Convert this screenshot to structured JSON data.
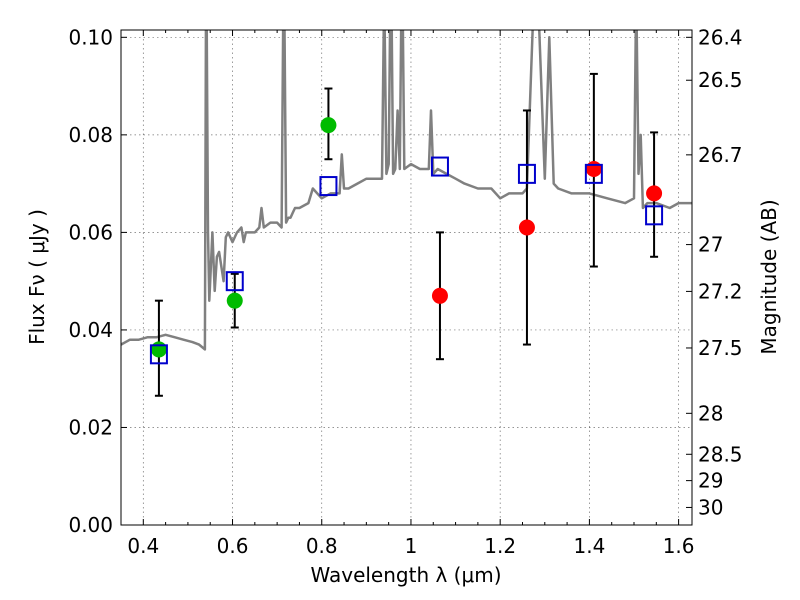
{
  "chart_data": {
    "type": "scatter",
    "title": "",
    "xlabel": "Wavelength  λ (μm)",
    "ylabel": "Flux  Fν  ( μJy )",
    "y2label": "Magnitude (AB)",
    "xlim": [
      0.35,
      1.63
    ],
    "ylim": [
      0.0,
      0.1015
    ],
    "grid": true,
    "x_ticks": [
      0.4,
      0.6,
      0.8,
      1.0,
      1.2,
      1.4,
      1.6
    ],
    "x_tick_labels": [
      "0.4",
      "0.6",
      "0.8",
      "1",
      "1.2",
      "1.4",
      "1.6"
    ],
    "y_ticks": [
      0.0,
      0.02,
      0.04,
      0.06,
      0.08,
      0.1
    ],
    "y_tick_labels": [
      "0.00",
      "0.02",
      "0.04",
      "0.06",
      "0.08",
      "0.10"
    ],
    "magnitude_ticks": [
      {
        "label": "26.4",
        "flux": 0.1
      },
      {
        "label": "26.5",
        "flux": 0.0912
      },
      {
        "label": "26.7",
        "flux": 0.0759
      },
      {
        "label": "27",
        "flux": 0.0575
      },
      {
        "label": "27.2",
        "flux": 0.0479
      },
      {
        "label": "27.5",
        "flux": 0.0363
      },
      {
        "label": "28",
        "flux": 0.0229
      },
      {
        "label": "28.5",
        "flux": 0.0145
      },
      {
        "label": "29",
        "flux": 0.0091
      },
      {
        "label": "30",
        "flux": 0.0036
      }
    ],
    "series": [
      {
        "name": "model spectrum",
        "kind": "line",
        "color": "#808080",
        "x": [
          0.35,
          0.37,
          0.39,
          0.41,
          0.43,
          0.45,
          0.47,
          0.49,
          0.51,
          0.525,
          0.538,
          0.541,
          0.545,
          0.548,
          0.55,
          0.555,
          0.56,
          0.565,
          0.57,
          0.58,
          0.585,
          0.59,
          0.6,
          0.61,
          0.62,
          0.625,
          0.63,
          0.65,
          0.66,
          0.665,
          0.67,
          0.685,
          0.7,
          0.71,
          0.715,
          0.72,
          0.725,
          0.73,
          0.735,
          0.74,
          0.75,
          0.77,
          0.78,
          0.8,
          0.82,
          0.84,
          0.845,
          0.85,
          0.86,
          0.88,
          0.9,
          0.92,
          0.935,
          0.94,
          0.945,
          0.95,
          0.955,
          0.96,
          0.965,
          0.97,
          0.975,
          0.98,
          0.985,
          1.0,
          1.02,
          1.04,
          1.045,
          1.05,
          1.06,
          1.08,
          1.1,
          1.12,
          1.15,
          1.18,
          1.2,
          1.22,
          1.25,
          1.26,
          1.28,
          1.3,
          1.31,
          1.32,
          1.33,
          1.36,
          1.4,
          1.44,
          1.48,
          1.5,
          1.505,
          1.51,
          1.515,
          1.52,
          1.53,
          1.55,
          1.58,
          1.6,
          1.63
        ],
        "y": [
          0.037,
          0.038,
          0.038,
          0.0385,
          0.0385,
          0.039,
          0.0385,
          0.038,
          0.0375,
          0.037,
          0.036,
          0.12,
          0.06,
          0.046,
          0.05,
          0.06,
          0.048,
          0.055,
          0.056,
          0.05,
          0.059,
          0.06,
          0.058,
          0.06,
          0.061,
          0.058,
          0.06,
          0.06,
          0.061,
          0.065,
          0.061,
          0.062,
          0.062,
          0.061,
          0.12,
          0.062,
          0.063,
          0.063,
          0.064,
          0.065,
          0.065,
          0.066,
          0.069,
          0.067,
          0.068,
          0.068,
          0.076,
          0.069,
          0.069,
          0.07,
          0.071,
          0.071,
          0.071,
          0.11,
          0.072,
          0.074,
          0.12,
          0.072,
          0.073,
          0.085,
          0.073,
          0.12,
          0.073,
          0.074,
          0.073,
          0.073,
          0.085,
          0.072,
          0.073,
          0.072,
          0.071,
          0.07,
          0.069,
          0.069,
          0.067,
          0.068,
          0.068,
          0.069,
          0.12,
          0.071,
          0.1,
          0.07,
          0.069,
          0.068,
          0.068,
          0.067,
          0.066,
          0.067,
          0.11,
          0.072,
          0.08,
          0.065,
          0.066,
          0.066,
          0.065,
          0.066,
          0.066
        ]
      },
      {
        "name": "green detections",
        "kind": "points",
        "color": "#00bb00",
        "points": [
          {
            "x": 0.435,
            "y": 0.036,
            "yerr_low": 0.0265,
            "yerr_high": 0.046
          },
          {
            "x": 0.605,
            "y": 0.046,
            "yerr_low": 0.0405,
            "yerr_high": 0.0515
          },
          {
            "x": 0.815,
            "y": 0.082,
            "yerr_low": 0.075,
            "yerr_high": 0.0895
          }
        ]
      },
      {
        "name": "red detections",
        "kind": "points",
        "color": "#ff0000",
        "points": [
          {
            "x": 1.065,
            "y": 0.047,
            "yerr_low": 0.034,
            "yerr_high": 0.06
          },
          {
            "x": 1.26,
            "y": 0.061,
            "yerr_low": 0.037,
            "yerr_high": 0.085
          },
          {
            "x": 1.41,
            "y": 0.073,
            "yerr_low": 0.053,
            "yerr_high": 0.0925
          },
          {
            "x": 1.545,
            "y": 0.068,
            "yerr_low": 0.055,
            "yerr_high": 0.0805
          }
        ]
      },
      {
        "name": "model band flux",
        "kind": "open-squares",
        "color": "#0000cc",
        "points": [
          {
            "x": 0.435,
            "y": 0.035
          },
          {
            "x": 0.605,
            "y": 0.05
          },
          {
            "x": 0.815,
            "y": 0.0695
          },
          {
            "x": 1.065,
            "y": 0.0735
          },
          {
            "x": 1.26,
            "y": 0.072
          },
          {
            "x": 1.41,
            "y": 0.072
          },
          {
            "x": 1.545,
            "y": 0.0635
          }
        ]
      }
    ]
  }
}
